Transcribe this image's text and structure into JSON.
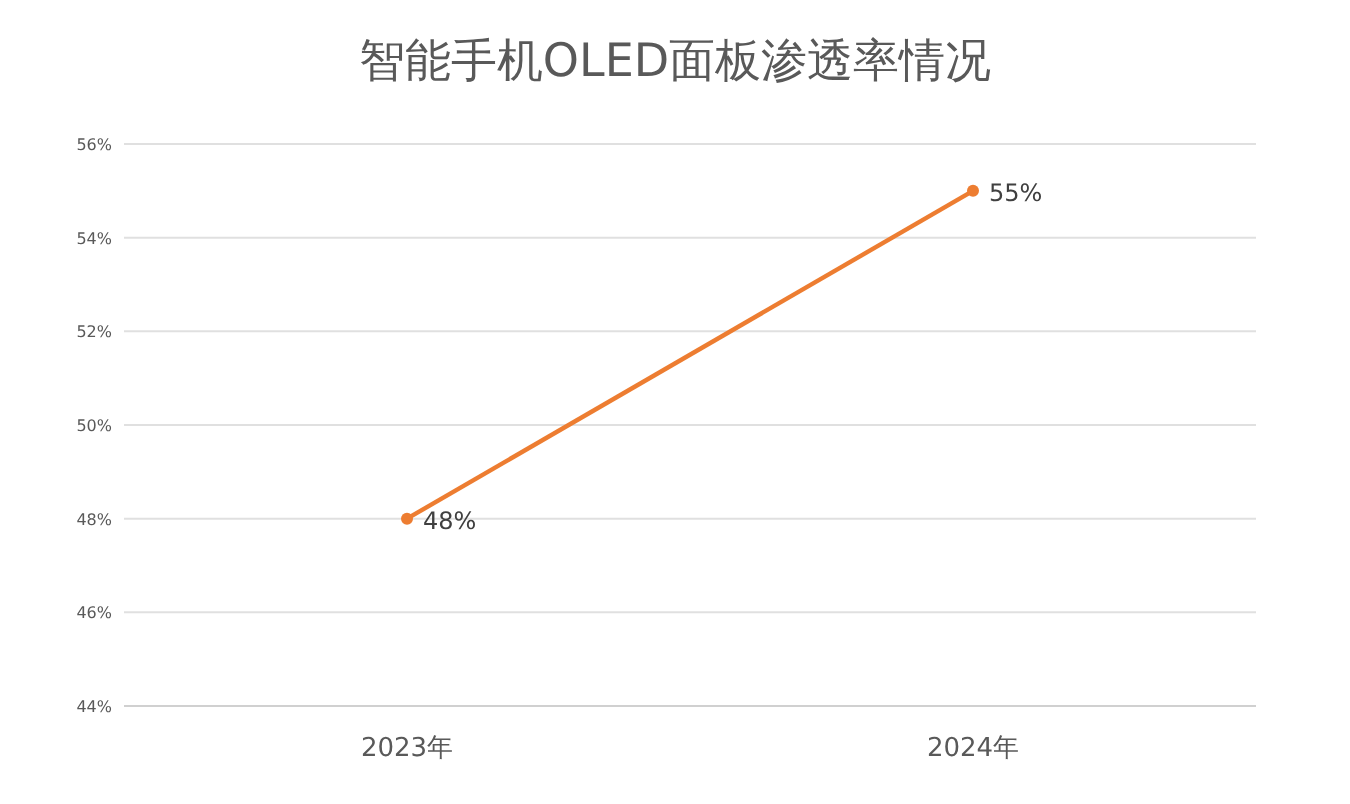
{
  "chart_data": {
    "type": "line",
    "title": "智能手机OLED面板渗透率情况",
    "categories": [
      "2023年",
      "2024年"
    ],
    "values": [
      48,
      55
    ],
    "value_labels": [
      "48%",
      "55%"
    ],
    "color": "#ed7d31",
    "marker": "circle",
    "ylim": [
      44,
      56
    ],
    "yticks": [
      {
        "value": 44,
        "label": "44%"
      },
      {
        "value": 46,
        "label": "46%"
      },
      {
        "value": 48,
        "label": "48%"
      },
      {
        "value": 50,
        "label": "50%"
      },
      {
        "value": 52,
        "label": "52%"
      },
      {
        "value": 54,
        "label": "54%"
      },
      {
        "value": 56,
        "label": "56%"
      }
    ],
    "grid": "y"
  }
}
